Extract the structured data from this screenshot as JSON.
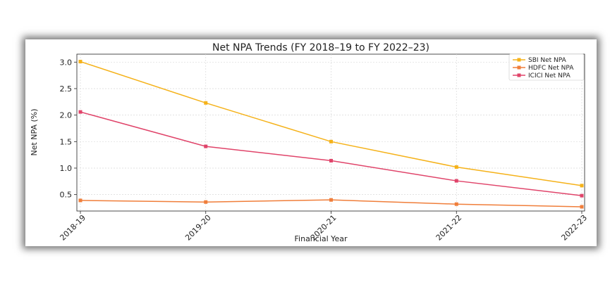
{
  "chart_data": {
    "type": "line",
    "title": "Net NPA Trends (FY 2018–19 to FY 2022–23)",
    "xlabel": "Financial Year",
    "ylabel": "Net NPA (%)",
    "categories": [
      "2018-19",
      "2019-20",
      "2020-21",
      "2021-22",
      "2022-23"
    ],
    "yticks": [
      0.5,
      1.0,
      1.5,
      2.0,
      2.5,
      3.0
    ],
    "ytick_labels": [
      "0.5",
      "1.0",
      "1.5",
      "2.0",
      "2.5",
      "3.0"
    ],
    "ylim": [
      0.19,
      3.15
    ],
    "grid": true,
    "legend_position": "top-right",
    "series": [
      {
        "name": "SBI Net NPA",
        "values": [
          3.01,
          2.23,
          1.5,
          1.02,
          0.67
        ],
        "color": "#f5b21a"
      },
      {
        "name": "HDFC Net NPA",
        "values": [
          0.39,
          0.36,
          0.4,
          0.32,
          0.27
        ],
        "color": "#f07e3a"
      },
      {
        "name": "ICICI Net NPA",
        "values": [
          2.06,
          1.41,
          1.14,
          0.76,
          0.48
        ],
        "color": "#e0446a"
      }
    ]
  }
}
